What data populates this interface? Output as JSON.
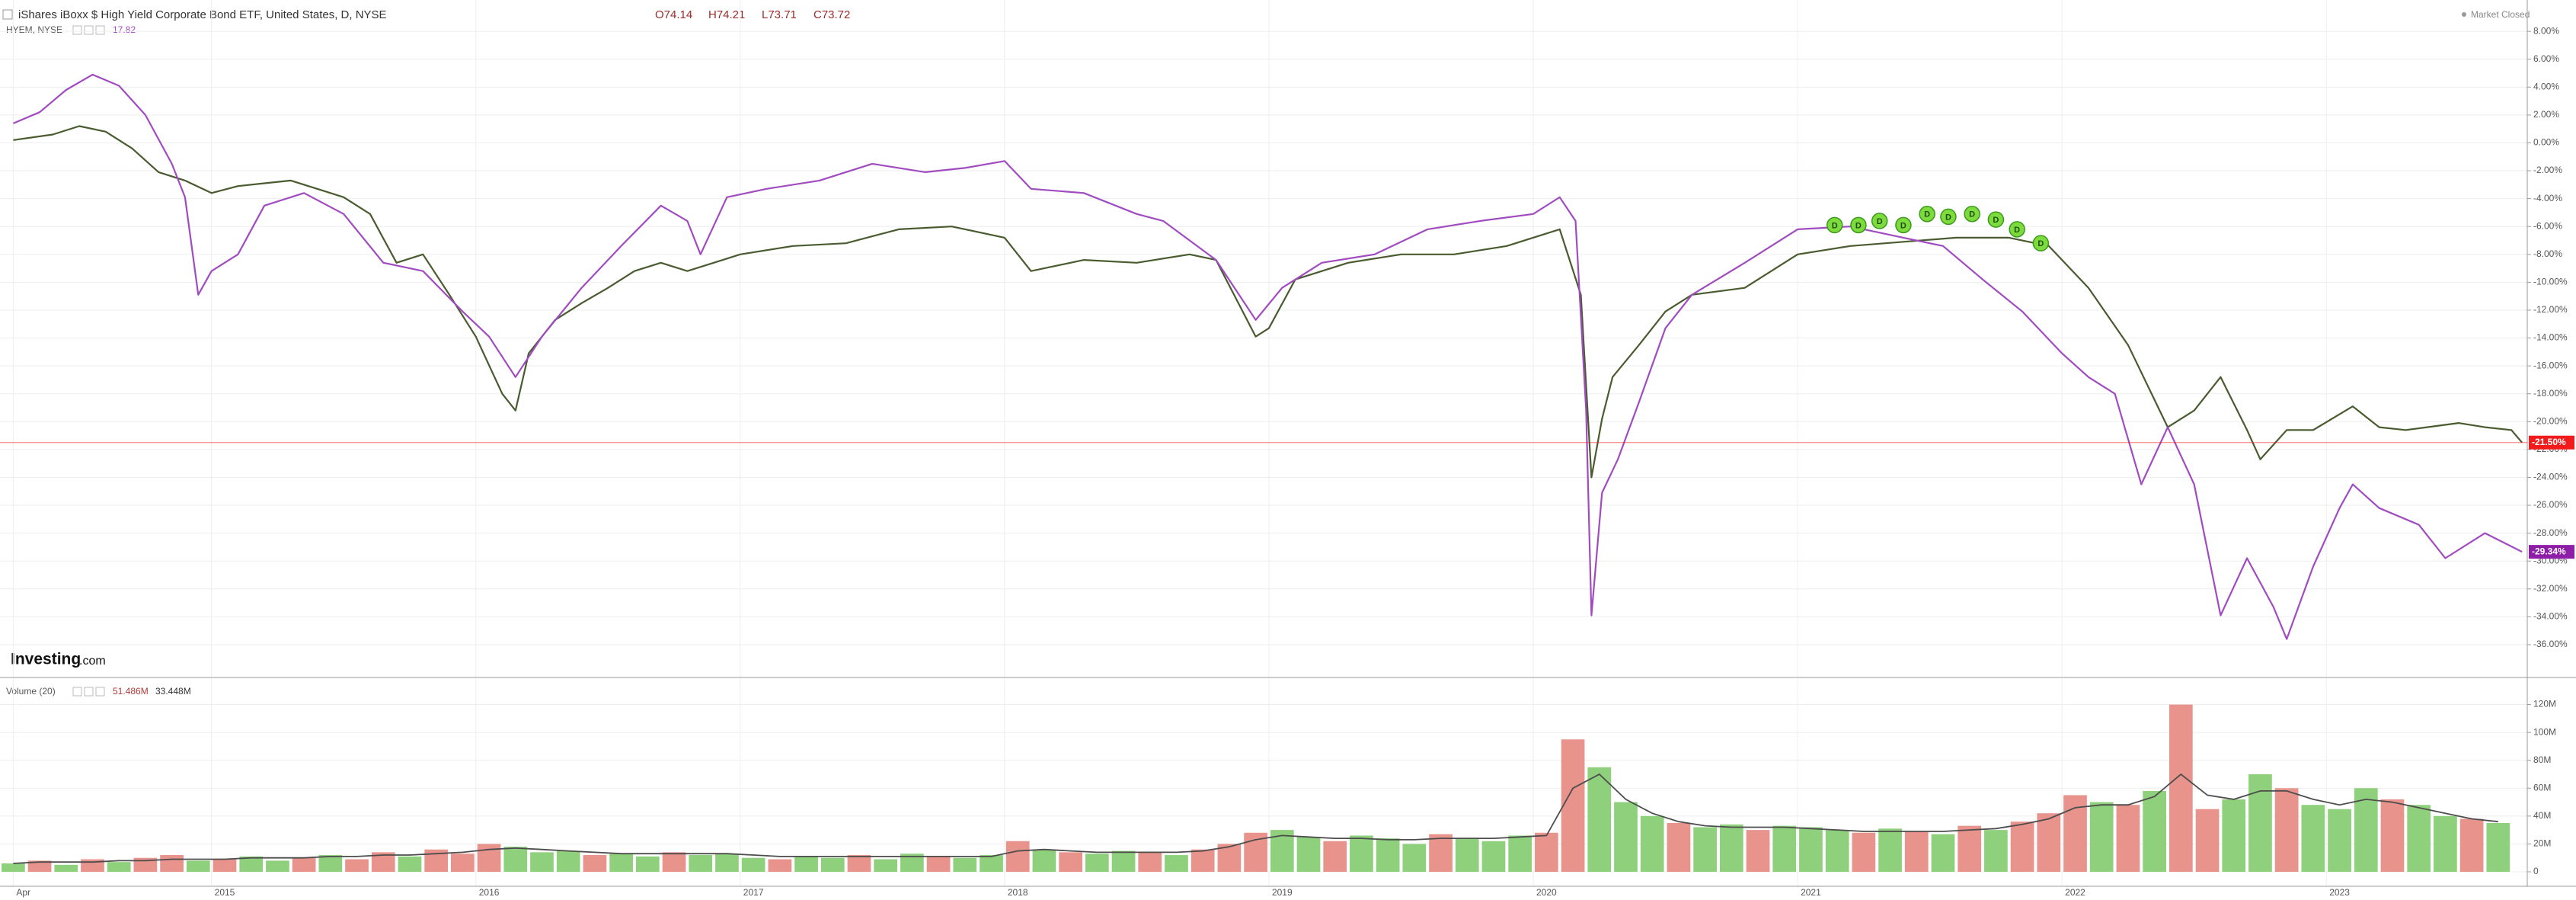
{
  "chart_data": [
    {
      "type": "line",
      "title": "iShares iBoxx $ High Yield Corporate Bond ETF, United States, D, NYSE",
      "ohlc": [
        "O74.14",
        "H74.21",
        "L73.71",
        "C73.72"
      ],
      "status": "Market Closed",
      "logo": {
        "brand": "Investing",
        "suffix": ".com"
      },
      "xlim": [
        2014.2,
        2023.76
      ],
      "xticks": [
        {
          "value": 2014.25,
          "label": "Apr"
        },
        2015,
        2016,
        2017,
        2018,
        2019,
        2020,
        2021,
        2022,
        2023
      ],
      "ylim": [
        -38.3,
        10.25
      ],
      "yticks": [
        {
          "value": 8,
          "label": "8.00%"
        },
        {
          "value": 6,
          "label": "6.00%"
        },
        {
          "value": 4,
          "label": "4.00%"
        },
        {
          "value": 2,
          "label": "2.00%"
        },
        {
          "value": 0,
          "label": "0.00%"
        },
        {
          "value": -2,
          "label": "-2.00%"
        },
        {
          "value": -4,
          "label": "-4.00%"
        },
        {
          "value": -6,
          "label": "-6.00%"
        },
        {
          "value": -8,
          "label": "-8.00%"
        },
        {
          "value": -10,
          "label": "-10.00%"
        },
        {
          "value": -12,
          "label": "-12.00%"
        },
        {
          "value": -14,
          "label": "-14.00%"
        },
        {
          "value": -16,
          "label": "-16.00%"
        },
        {
          "value": -18,
          "label": "-18.00%"
        },
        {
          "value": -20,
          "label": "-20.00%"
        },
        {
          "value": -22,
          "label": "-22.00%"
        },
        {
          "value": -24,
          "label": "-24.00%"
        },
        {
          "value": -26,
          "label": "-26.00%"
        },
        {
          "value": -28,
          "label": "-28.00%"
        },
        {
          "value": -30,
          "label": "-30.00%"
        },
        {
          "value": -32,
          "label": "-32.00%"
        },
        {
          "value": -34,
          "label": "-34.00%"
        },
        {
          "value": -36,
          "label": "-36.00%"
        }
      ],
      "grid": true,
      "series": [
        {
          "color": "#4a5b30",
          "x": [
            2014.25,
            2014.4,
            2014.5,
            2014.6,
            2014.7,
            2014.8,
            2014.9,
            2015.0,
            2015.1,
            2015.2,
            2015.3,
            2015.4,
            2015.5,
            2015.6,
            2015.7,
            2015.8,
            2015.9,
            2016.0,
            2016.1,
            2016.15,
            2016.2,
            2016.3,
            2016.4,
            2016.5,
            2016.6,
            2016.7,
            2016.8,
            2016.9,
            2017.0,
            2017.2,
            2017.4,
            2017.6,
            2017.8,
            2018.0,
            2018.1,
            2018.3,
            2018.5,
            2018.7,
            2018.8,
            2018.95,
            2019.0,
            2019.1,
            2019.3,
            2019.5,
            2019.7,
            2019.9,
            2020.1,
            2020.18,
            2020.22,
            2020.26,
            2020.3,
            2020.4,
            2020.5,
            2020.6,
            2020.8,
            2021.0,
            2021.2,
            2021.4,
            2021.6,
            2021.8,
            2021.95,
            2022.1,
            2022.25,
            2022.4,
            2022.5,
            2022.6,
            2022.7,
            2022.75,
            2022.85,
            2022.95,
            2023.1,
            2023.2,
            2023.3,
            2023.5,
            2023.6,
            2023.7,
            2023.74
          ],
          "values": [
            0.2,
            0.6,
            1.2,
            0.8,
            -0.4,
            -2.1,
            -2.7,
            -3.6,
            -3.1,
            -2.9,
            -2.7,
            -3.3,
            -3.9,
            -5.1,
            -8.6,
            -8.0,
            -10.9,
            -13.9,
            -18.0,
            -19.2,
            -15.1,
            -12.7,
            -11.5,
            -10.4,
            -9.2,
            -8.6,
            -9.2,
            -8.6,
            -8.0,
            -7.4,
            -7.2,
            -6.2,
            -6.0,
            -6.8,
            -9.2,
            -8.4,
            -8.6,
            -8.0,
            -8.4,
            -13.9,
            -13.3,
            -9.8,
            -8.6,
            -8.0,
            -8.0,
            -7.4,
            -6.2,
            -10.9,
            -24.0,
            -19.8,
            -16.8,
            -14.5,
            -12.1,
            -10.9,
            -10.4,
            -8.0,
            -7.4,
            -7.1,
            -6.8,
            -6.8,
            -7.4,
            -10.4,
            -14.5,
            -20.4,
            -19.2,
            -16.8,
            -20.6,
            -22.7,
            -20.6,
            -20.6,
            -18.9,
            -20.4,
            -20.6,
            -20.1,
            -20.4,
            -20.6,
            -21.5
          ]
        },
        {
          "name": "HYEM, NYSE",
          "last": "17.82",
          "color": "#a04cc0",
          "x": [
            2014.25,
            2014.35,
            2014.45,
            2014.55,
            2014.65,
            2014.75,
            2014.85,
            2014.9,
            2014.95,
            2015.0,
            2015.1,
            2015.2,
            2015.35,
            2015.5,
            2015.65,
            2015.8,
            2015.95,
            2016.05,
            2016.15,
            2016.25,
            2016.4,
            2016.55,
            2016.7,
            2016.8,
            2016.85,
            2016.95,
            2017.1,
            2017.3,
            2017.5,
            2017.7,
            2017.85,
            2018.0,
            2018.1,
            2018.3,
            2018.5,
            2018.6,
            2018.8,
            2018.95,
            2019.05,
            2019.2,
            2019.4,
            2019.6,
            2019.8,
            2020.0,
            2020.1,
            2020.16,
            2020.2,
            2020.22,
            2020.26,
            2020.32,
            2020.4,
            2020.5,
            2020.6,
            2020.8,
            2021.0,
            2021.2,
            2021.4,
            2021.55,
            2021.7,
            2021.85,
            2022.0,
            2022.1,
            2022.2,
            2022.3,
            2022.4,
            2022.5,
            2022.6,
            2022.7,
            2022.8,
            2022.85,
            2022.95,
            2023.05,
            2023.1,
            2023.2,
            2023.35,
            2023.45,
            2023.6,
            2023.74
          ],
          "values": [
            1.4,
            2.2,
            3.8,
            4.9,
            4.1,
            2.0,
            -1.5,
            -3.9,
            -10.9,
            -9.2,
            -8.0,
            -4.5,
            -3.6,
            -5.1,
            -8.6,
            -9.2,
            -12.1,
            -13.9,
            -16.8,
            -13.9,
            -10.4,
            -7.4,
            -4.5,
            -5.6,
            -8.0,
            -3.9,
            -3.3,
            -2.7,
            -1.5,
            -2.1,
            -1.8,
            -1.3,
            -3.3,
            -3.6,
            -5.1,
            -5.6,
            -8.4,
            -12.7,
            -10.4,
            -8.6,
            -8.0,
            -6.2,
            -5.6,
            -5.1,
            -3.9,
            -5.6,
            -19.2,
            -33.9,
            -25.1,
            -22.7,
            -18.6,
            -13.3,
            -10.9,
            -8.6,
            -6.2,
            -6.0,
            -6.8,
            -7.4,
            -9.8,
            -12.1,
            -15.1,
            -16.8,
            -18.0,
            -24.5,
            -20.4,
            -24.5,
            -33.9,
            -29.8,
            -33.3,
            -35.6,
            -30.4,
            -26.2,
            -24.5,
            -26.2,
            -27.4,
            -29.8,
            -28.0,
            -29.34
          ]
        }
      ],
      "price_lines": [
        {
          "value": -21.5,
          "label": "-21.50%",
          "color": "#f21b1b"
        },
        {
          "value": -29.34,
          "label": "-29.34%",
          "color": "#8e1ea8"
        }
      ],
      "events": [
        {
          "x": 2021.14,
          "y": -5.9,
          "label": "D"
        },
        {
          "x": 2021.23,
          "y": -5.9,
          "label": "D"
        },
        {
          "x": 2021.31,
          "y": -5.6,
          "label": "D"
        },
        {
          "x": 2021.4,
          "y": -5.9,
          "label": "D"
        },
        {
          "x": 2021.49,
          "y": -5.1,
          "label": "D"
        },
        {
          "x": 2021.57,
          "y": -5.3,
          "label": "D"
        },
        {
          "x": 2021.66,
          "y": -5.1,
          "label": "D"
        },
        {
          "x": 2021.75,
          "y": -5.5,
          "label": "D"
        },
        {
          "x": 2021.83,
          "y": -6.2,
          "label": "D"
        },
        {
          "x": 2021.92,
          "y": -7.2,
          "label": "D"
        }
      ]
    },
    {
      "type": "bar",
      "title": "Volume (20)",
      "legend_values": [
        {
          "label": "51.486M",
          "color": "#b03a3a"
        },
        {
          "label": "33.448M",
          "color": "#333333"
        }
      ],
      "ylim": [
        -10.4,
        138.9
      ],
      "yticks": [
        0,
        {
          "value": 20,
          "label": "20M"
        },
        {
          "value": 40,
          "label": "40M"
        },
        {
          "value": 60,
          "label": "60M"
        },
        {
          "value": 80,
          "label": "80M"
        },
        {
          "value": 100,
          "label": "100M"
        },
        {
          "value": 120,
          "label": "120M"
        }
      ],
      "x": [
        2014.25,
        2014.35,
        2014.45,
        2014.55,
        2014.65,
        2014.75,
        2014.85,
        2014.95,
        2015.05,
        2015.15,
        2015.25,
        2015.35,
        2015.45,
        2015.55,
        2015.65,
        2015.75,
        2015.85,
        2015.95,
        2016.05,
        2016.15,
        2016.25,
        2016.35,
        2016.45,
        2016.55,
        2016.65,
        2016.75,
        2016.85,
        2016.95,
        2017.05,
        2017.15,
        2017.25,
        2017.35,
        2017.45,
        2017.55,
        2017.65,
        2017.75,
        2017.85,
        2017.95,
        2018.05,
        2018.15,
        2018.25,
        2018.35,
        2018.45,
        2018.55,
        2018.65,
        2018.75,
        2018.85,
        2018.95,
        2019.05,
        2019.15,
        2019.25,
        2019.35,
        2019.45,
        2019.55,
        2019.65,
        2019.75,
        2019.85,
        2019.95,
        2020.05,
        2020.15,
        2020.25,
        2020.35,
        2020.45,
        2020.55,
        2020.65,
        2020.75,
        2020.85,
        2020.95,
        2021.05,
        2021.15,
        2021.25,
        2021.35,
        2021.45,
        2021.55,
        2021.65,
        2021.75,
        2021.85,
        2021.95,
        2022.05,
        2022.15,
        2022.25,
        2022.35,
        2022.45,
        2022.55,
        2022.65,
        2022.75,
        2022.85,
        2022.95,
        2023.05,
        2023.15,
        2023.25,
        2023.35,
        2023.45,
        2023.55,
        2023.65
      ],
      "values": [
        6,
        8,
        5,
        9,
        7,
        10,
        12,
        8,
        9,
        11,
        8,
        10,
        12,
        9,
        14,
        11,
        16,
        13,
        20,
        18,
        14,
        15,
        12,
        13,
        11,
        14,
        12,
        13,
        10,
        9,
        11,
        10,
        12,
        9,
        13,
        11,
        10,
        12,
        22,
        16,
        14,
        13,
        15,
        14,
        12,
        16,
        20,
        28,
        30,
        25,
        22,
        26,
        24,
        20,
        27,
        24,
        22,
        26,
        28,
        95,
        75,
        50,
        40,
        35,
        32,
        34,
        30,
        33,
        32,
        30,
        28,
        31,
        29,
        27,
        33,
        30,
        36,
        42,
        55,
        50,
        48,
        58,
        120,
        45,
        52,
        70,
        60,
        48,
        45,
        60,
        52,
        48,
        40,
        38,
        35
      ],
      "colors": [
        "#8fd07c",
        "#e8938c",
        "#8fd07c",
        "#e8938c",
        "#8fd07c",
        "#e8938c",
        "#e8938c",
        "#8fd07c",
        "#e8938c",
        "#8fd07c",
        "#8fd07c",
        "#e8938c",
        "#8fd07c",
        "#e8938c",
        "#e8938c",
        "#8fd07c",
        "#e8938c",
        "#e8938c",
        "#e8938c",
        "#8fd07c",
        "#8fd07c",
        "#8fd07c",
        "#e8938c",
        "#8fd07c",
        "#8fd07c",
        "#e8938c",
        "#8fd07c",
        "#8fd07c",
        "#8fd07c",
        "#e8938c",
        "#8fd07c",
        "#8fd07c",
        "#e8938c",
        "#8fd07c",
        "#8fd07c",
        "#e8938c",
        "#8fd07c",
        "#8fd07c",
        "#e8938c",
        "#8fd07c",
        "#e8938c",
        "#8fd07c",
        "#8fd07c",
        "#e8938c",
        "#8fd07c",
        "#e8938c",
        "#e8938c",
        "#e8938c",
        "#8fd07c",
        "#8fd07c",
        "#e8938c",
        "#8fd07c",
        "#8fd07c",
        "#8fd07c",
        "#e8938c",
        "#8fd07c",
        "#8fd07c",
        "#8fd07c",
        "#e8938c",
        "#e8938c",
        "#8fd07c",
        "#8fd07c",
        "#8fd07c",
        "#e8938c",
        "#8fd07c",
        "#8fd07c",
        "#e8938c",
        "#8fd07c",
        "#8fd07c",
        "#8fd07c",
        "#e8938c",
        "#8fd07c",
        "#e8938c",
        "#8fd07c",
        "#e8938c",
        "#8fd07c",
        "#e8938c",
        "#e8938c",
        "#e8938c",
        "#8fd07c",
        "#e8938c",
        "#8fd07c",
        "#e8938c",
        "#e8938c",
        "#8fd07c",
        "#8fd07c",
        "#e8938c",
        "#8fd07c",
        "#8fd07c",
        "#8fd07c",
        "#e8938c",
        "#8fd07c",
        "#8fd07c",
        "#e8938c",
        "#8fd07c"
      ],
      "ma": {
        "color": "#4d4d4d",
        "values": [
          6,
          7,
          7,
          7,
          8,
          8,
          9,
          9,
          9,
          10,
          10,
          10,
          11,
          11,
          12,
          12,
          13,
          14,
          16,
          17,
          16,
          15,
          14,
          13,
          13,
          13,
          13,
          13,
          12,
          11,
          11,
          11,
          11,
          11,
          11,
          11,
          11,
          11,
          15,
          16,
          15,
          14,
          14,
          14,
          14,
          15,
          18,
          23,
          26,
          25,
          24,
          24,
          23,
          23,
          24,
          24,
          24,
          25,
          26,
          60,
          70,
          52,
          42,
          36,
          33,
          32,
          32,
          32,
          31,
          30,
          29,
          29,
          29,
          29,
          30,
          31,
          34,
          38,
          46,
          48,
          48,
          54,
          70,
          55,
          52,
          58,
          58,
          52,
          48,
          52,
          50,
          46,
          42,
          38,
          36
        ]
      }
    }
  ]
}
